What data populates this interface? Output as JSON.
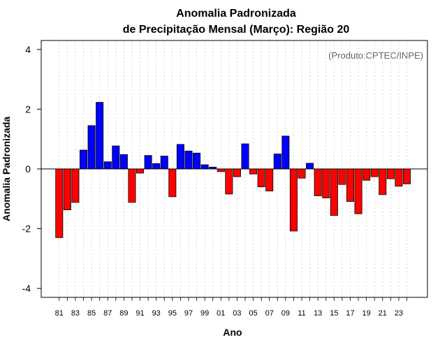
{
  "chart_data": {
    "type": "bar",
    "title_line1": "Anomalia Padronizada",
    "title_line2": "de Precipitação Mensal (Março): Região 20",
    "xlabel": "Ano",
    "ylabel": "Anomalia Padronizada",
    "credit": "(Produto:CPTEC/INPE)",
    "ylim": [
      -4.3,
      4.3
    ],
    "yticks": [
      -4,
      -2,
      0,
      2,
      4
    ],
    "ytick_labels": [
      "-4",
      "-2",
      "0",
      "2",
      "4"
    ],
    "grid": "vertical dotted",
    "categories": [
      "81",
      "82",
      "83",
      "84",
      "85",
      "86",
      "87",
      "88",
      "89",
      "90",
      "91",
      "92",
      "93",
      "94",
      "95",
      "96",
      "97",
      "98",
      "99",
      "00",
      "01",
      "02",
      "03",
      "04",
      "05",
      "06",
      "07",
      "08",
      "09",
      "10",
      "11",
      "12",
      "13",
      "14",
      "15",
      "16",
      "17",
      "18",
      "19",
      "20",
      "21",
      "22",
      "23",
      "24"
    ],
    "xtick_labels": [
      "81",
      "83",
      "85",
      "87",
      "89",
      "91",
      "93",
      "95",
      "97",
      "99",
      "01",
      "03",
      "05",
      "07",
      "09",
      "11",
      "13",
      "15",
      "17",
      "19",
      "21",
      "23"
    ],
    "values": [
      -2.3,
      -1.37,
      -1.12,
      0.63,
      1.45,
      2.23,
      0.24,
      0.77,
      0.48,
      -1.12,
      -0.14,
      0.45,
      0.18,
      0.43,
      -0.93,
      0.82,
      0.6,
      0.53,
      0.14,
      0.06,
      -0.09,
      -0.84,
      -0.26,
      0.84,
      -0.17,
      -0.6,
      -0.74,
      0.5,
      1.1,
      -2.08,
      -0.31,
      0.19,
      -0.9,
      -0.97,
      -1.56,
      -0.52,
      -1.09,
      -1.5,
      -0.38,
      -0.26,
      -0.86,
      -0.33,
      -0.58,
      -0.5
    ],
    "colors": {
      "positive": "#0000ff",
      "negative": "#ff0000"
    }
  }
}
